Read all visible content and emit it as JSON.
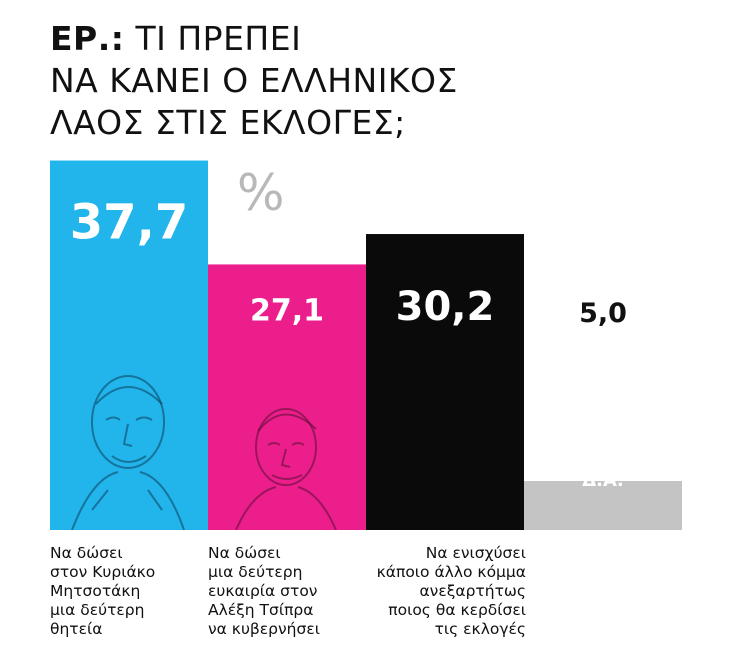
{
  "header": {
    "title_lead": "ΕΡ.:",
    "title_line1": "ΤΙ ΠΡΕΠΕΙ",
    "title_line2": "ΝΑ ΚΑΝΕΙ Ο ΕΛΛΗΝΙΚΟΣ",
    "title_line3": "ΛΑΟΣ ΣΤΙΣ ΕΚΛΟΓΕΣ;"
  },
  "unit": "%",
  "chart_data": {
    "type": "bar",
    "unit": "%",
    "ylim": [
      0,
      40
    ],
    "grid": false,
    "bars": [
      {
        "value": 37.7,
        "value_label": "37,7",
        "color": "#21b5ec",
        "label_color": "#ffffff",
        "category": [
          "Να δώσει",
          "στον Κυριάκο",
          "Μητσοτάκη",
          "μια δεύτερη",
          "θητεία"
        ],
        "align": "left"
      },
      {
        "value": 27.1,
        "value_label": "27,1",
        "color": "#ec1e8c",
        "label_color": "#ffffff",
        "category": [
          "Να δώσει",
          "μια δεύτερη",
          "ευκαιρία στον",
          "Αλέξη Τσίπρα",
          "να κυβερνήσει"
        ],
        "align": "left"
      },
      {
        "value": 30.2,
        "value_label": "30,2",
        "color": "#0a0a0a",
        "label_color": "#ffffff",
        "category": [
          "Να ενισχύσει",
          "κάποιο άλλο κόμμα",
          "ανεξαρτήτως",
          "ποιος θα κερδίσει",
          "τις εκλογές"
        ],
        "align": "right"
      },
      {
        "value": 5.0,
        "value_label": "5,0",
        "color": "#c4c4c4",
        "label_color": "#111111",
        "inner_label": "Δ.Α."
      }
    ]
  }
}
